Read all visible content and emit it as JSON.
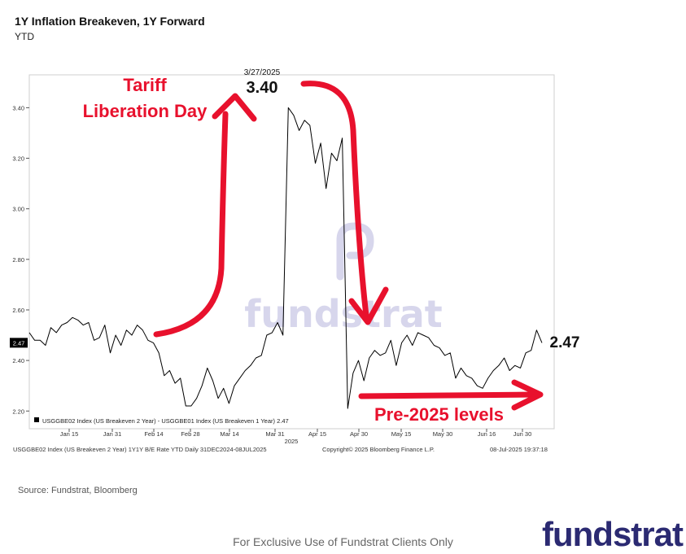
{
  "title": "1Y Inflation Breakeven, 1Y Forward",
  "subtitle": "YTD",
  "source": "Source: Fundstrat, Bloomberg",
  "footer_left": "USGGBE02 Index (US Breakeven 2 Year) 1Y1Y B/E Rate YTD  Daily 31DEC2024-08JUL2025",
  "footer_center": "Copyright© 2025 Bloomberg Finance L.P.",
  "footer_right": "08-Jul-2025 19:37:18",
  "exclusive_note": "For Exclusive Use of Fundstrat Clients Only",
  "brand": "fundstrat",
  "watermark": "fundstrat",
  "colors": {
    "line": "#000000",
    "annotation": "#e8112d",
    "brand": "#2b2a72",
    "watermark": "#c9c8e6"
  },
  "chart_data": {
    "type": "line",
    "ylim": [
      2.13,
      3.53
    ],
    "yticks": [
      2.2,
      2.4,
      2.6,
      2.8,
      3.0,
      3.2,
      3.4
    ],
    "ytick_labels": [
      "2.20",
      "2.40",
      "2.60",
      "2.80",
      "3.00",
      "3.20",
      "3.40"
    ],
    "x_tick_labels": [
      "Jan 15",
      "Jan 31",
      "Feb 14",
      "Feb 28",
      "Mar 14",
      "Mar 31",
      "Apr 15",
      "Apr 30",
      "May 15",
      "May 30",
      "Jun 16",
      "Jun 30"
    ],
    "x_year_label": "2025",
    "legend": "USGGBE02 Index (US Breakeven 2 Year) - USGGBE01 Index (US Breakeven 1 Year) 2.47",
    "last_value_tag": "2.47",
    "series": [
      {
        "name": "USGGBE02 Index (US Breakeven 2 Year) - USGGBE01 Index (US Breakeven 1 Year)",
        "values": [
          2.51,
          2.48,
          2.48,
          2.46,
          2.53,
          2.51,
          2.54,
          2.55,
          2.57,
          2.56,
          2.54,
          2.55,
          2.48,
          2.49,
          2.54,
          2.43,
          2.5,
          2.46,
          2.52,
          2.5,
          2.54,
          2.52,
          2.48,
          2.47,
          2.43,
          2.34,
          2.36,
          2.31,
          2.33,
          2.22,
          2.22,
          2.25,
          2.3,
          2.37,
          2.32,
          2.25,
          2.29,
          2.23,
          2.3,
          2.33,
          2.36,
          2.38,
          2.41,
          2.42,
          2.5,
          2.51,
          2.55,
          2.5,
          3.4,
          3.37,
          3.31,
          3.35,
          3.33,
          3.18,
          3.26,
          3.08,
          3.22,
          3.19,
          3.28,
          2.21,
          2.35,
          2.4,
          2.32,
          2.41,
          2.44,
          2.42,
          2.43,
          2.48,
          2.38,
          2.47,
          2.5,
          2.46,
          2.51,
          2.5,
          2.49,
          2.46,
          2.45,
          2.42,
          2.43,
          2.33,
          2.37,
          2.34,
          2.33,
          2.3,
          2.29,
          2.33,
          2.36,
          2.38,
          2.41,
          2.36,
          2.38,
          2.37,
          2.43,
          2.44,
          2.52,
          2.47
        ]
      }
    ],
    "annotations": {
      "peak_date": "3/27/2025",
      "peak_value": "3.40",
      "end_value": "2.47",
      "tariff_label_1": "Tariff",
      "tariff_label_2": "Liberation Day",
      "pre2025_label": "Pre-2025 levels"
    }
  }
}
